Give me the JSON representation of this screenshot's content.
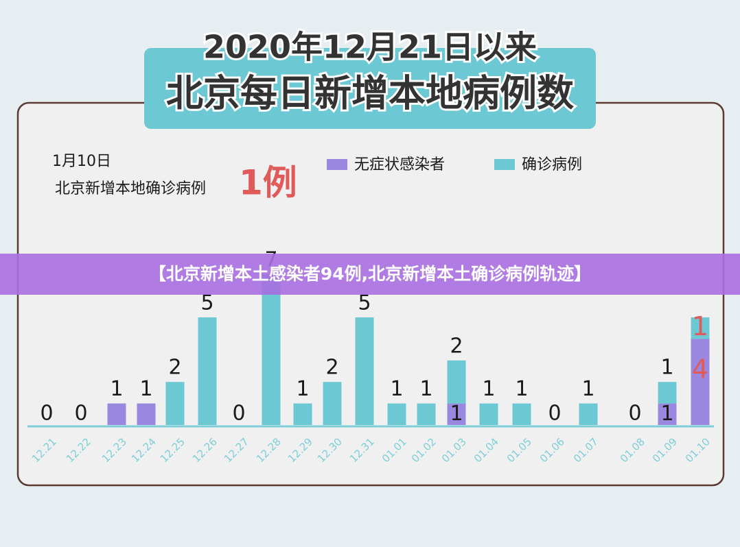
{
  "chart_data": {
    "type": "bar",
    "stacked": true,
    "title": "2020年12月21日以来",
    "subtitle": "北京每日新增本地病例数",
    "annotation": {
      "date": "1月10日",
      "label": "北京新增本地确诊病例",
      "value": "1例"
    },
    "categories": [
      "12.21",
      "12.22",
      "12.23",
      "12.24",
      "12.25",
      "12.26",
      "12.27",
      "12.28",
      "12.29",
      "12.30",
      "12.31",
      "01.01",
      "01.02",
      "01.03",
      "01.04",
      "01.05",
      "01.06",
      "01.07",
      "01.08",
      "01.09",
      "01.10"
    ],
    "series": [
      {
        "name": "无症状感染者",
        "color": "#9a88e0",
        "values": [
          0,
          0,
          1,
          1,
          0,
          0,
          0,
          0,
          0,
          0,
          0,
          0,
          0,
          1,
          0,
          0,
          0,
          0,
          0,
          1,
          4
        ]
      },
      {
        "name": "确诊病例",
        "color": "#6cc8d3",
        "values": [
          0,
          0,
          0,
          0,
          2,
          5,
          0,
          7,
          1,
          2,
          5,
          1,
          1,
          2,
          1,
          1,
          0,
          1,
          0,
          1,
          1
        ]
      }
    ]
  },
  "banner": "【北京新增本土感染者94例,北京新增本土确诊病例轨迹】"
}
